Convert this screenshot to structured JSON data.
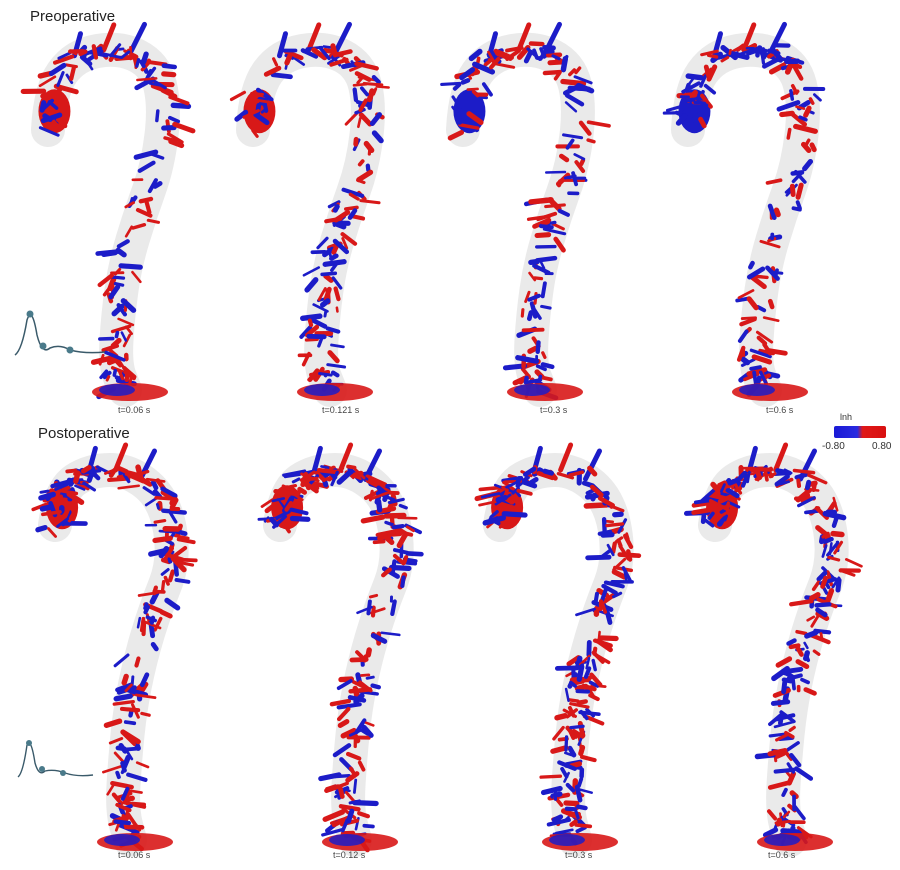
{
  "preoperative": {
    "title": "Preoperative",
    "time_labels": [
      "t=0.06 s",
      "t=0.121 s",
      "t=0.3 s",
      "t=0.6 s"
    ]
  },
  "postoperative": {
    "title": "Postoperative",
    "time_labels": [
      "t=0.06 s",
      "t=0.12 s",
      "t=0.3 s",
      "t=0.6 s"
    ]
  },
  "legend": {
    "title": "lnh",
    "min": "-0.80",
    "max": "0.80",
    "colors": {
      "negative": "#1a1ad6",
      "positive": "#e01818"
    }
  },
  "colors": {
    "vessel": "#dcdcdc",
    "blue": "#1c1cc8",
    "red": "#d81818"
  }
}
